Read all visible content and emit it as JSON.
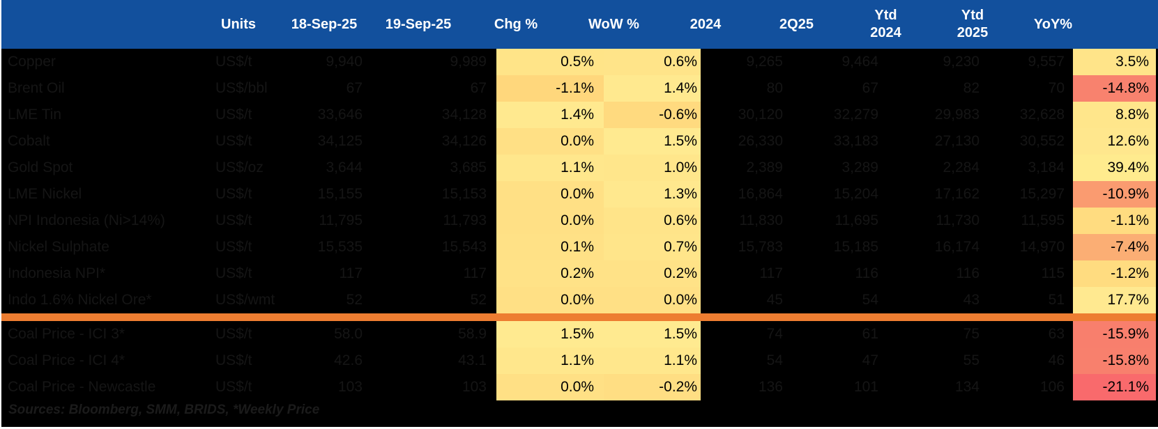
{
  "chart_data": {
    "type": "table",
    "divider_color": "#ED7D31",
    "header_bg": "#12509D",
    "columns": [
      {
        "label": ""
      },
      {
        "label": "Units"
      },
      {
        "label": "18-Sep-25"
      },
      {
        "label": "19-Sep-25"
      },
      {
        "label": "Chg %"
      },
      {
        "label": "WoW %"
      },
      {
        "label": "2024"
      },
      {
        "label": "2Q25"
      },
      {
        "line1": "Ytd",
        "line2": "2024"
      },
      {
        "line1": "Ytd",
        "line2": "2025"
      },
      {
        "label": "YoY%"
      }
    ],
    "rows": [
      {
        "label": "Copper",
        "units": "US$/t",
        "d18": "9,940",
        "d19": "9,989",
        "chg": "0.5%",
        "wow": "0.6%",
        "y2024": "9,265",
        "q2_25": "9,464",
        "ytd2024": "9,230",
        "ytd2025": "9,557",
        "yoy": "3.5%",
        "chg_bg": "#FFE488",
        "wow_bg": "#FFE489",
        "yoy_bg": "#FFE489"
      },
      {
        "label": "Brent Oil",
        "units": "US$/bbl",
        "d18": "67",
        "d19": "67",
        "chg": "-1.1%",
        "wow": "1.4%",
        "y2024": "80",
        "q2_25": "67",
        "ytd2024": "82",
        "ytd2025": "70",
        "yoy": "-14.8%",
        "chg_bg": "#FFD77C",
        "wow_bg": "#FFE98F",
        "yoy_bg": "#F8826E"
      },
      {
        "label": "LME Tin",
        "units": "US$/t",
        "d18": "33,646",
        "d19": "34,128",
        "chg": "1.4%",
        "wow": "-0.6%",
        "y2024": "30,120",
        "q2_25": "32,279",
        "ytd2024": "29,983",
        "ytd2025": "32,628",
        "yoy": "8.8%",
        "chg_bg": "#FFE98F",
        "wow_bg": "#FFDA7F",
        "yoy_bg": "#FFE68B"
      },
      {
        "label": "Cobalt",
        "units": "US$/t",
        "d18": "34,125",
        "d19": "34,126",
        "chg": "0.0%",
        "wow": "1.5%",
        "y2024": "26,330",
        "q2_25": "33,183",
        "ytd2024": "27,130",
        "ytd2025": "30,552",
        "yoy": "12.6%",
        "chg_bg": "#FFE085",
        "wow_bg": "#FFEA90",
        "yoy_bg": "#FFE78D"
      },
      {
        "label": "Gold Spot",
        "units": "US$/oz",
        "d18": "3,644",
        "d19": "3,685",
        "chg": "1.1%",
        "wow": "1.0%",
        "y2024": "2,389",
        "q2_25": "3,289",
        "ytd2024": "2,284",
        "ytd2025": "3,184",
        "yoy": "39.4%",
        "chg_bg": "#FFE78C",
        "wow_bg": "#FFE68B",
        "yoy_bg": "#FFEB8E"
      },
      {
        "label": "LME Nickel",
        "units": "US$/t",
        "d18": "15,155",
        "d19": "15,153",
        "chg": "0.0%",
        "wow": "1.3%",
        "y2024": "16,864",
        "q2_25": "15,204",
        "ytd2024": "17,162",
        "ytd2025": "15,297",
        "yoy": "-10.9%",
        "chg_bg": "#FFE085",
        "wow_bg": "#FFE88E",
        "yoy_bg": "#FA9B70"
      },
      {
        "label": "NPI Indonesia (Ni>14%)",
        "units": "US$/t",
        "d18": "11,795",
        "d19": "11,793",
        "chg": "0.0%",
        "wow": "0.6%",
        "y2024": "11,830",
        "q2_25": "11,695",
        "ytd2024": "11,730",
        "ytd2025": "11,595",
        "yoy": "-1.1%",
        "chg_bg": "#FFE085",
        "wow_bg": "#FFE489",
        "yoy_bg": "#FFDC80"
      },
      {
        "label": "Nickel Sulphate",
        "units": "US$/t",
        "d18": "15,535",
        "d19": "15,543",
        "chg": "0.1%",
        "wow": "0.7%",
        "y2024": "15,783",
        "q2_25": "15,185",
        "ytd2024": "16,174",
        "ytd2025": "14,970",
        "yoy": "-7.4%",
        "chg_bg": "#FFE186",
        "wow_bg": "#FFE58A",
        "yoy_bg": "#FBAE74"
      },
      {
        "label": "Indonesia NPI*",
        "units": "US$/t",
        "d18": "117",
        "d19": "117",
        "chg": "0.2%",
        "wow": "0.2%",
        "y2024": "117",
        "q2_25": "116",
        "ytd2024": "116",
        "ytd2025": "115",
        "yoy": "-1.2%",
        "chg_bg": "#FFE287",
        "wow_bg": "#FFE287",
        "yoy_bg": "#FFDC80"
      },
      {
        "label": "Indo 1.6% Nickel Ore*",
        "units": "US$/wmt",
        "d18": "52",
        "d19": "52",
        "chg": "0.0%",
        "wow": "0.0%",
        "y2024": "45",
        "q2_25": "54",
        "ytd2024": "43",
        "ytd2025": "51",
        "yoy": "17.7%",
        "chg_bg": "#FFE085",
        "wow_bg": "#FFE085",
        "yoy_bg": "#FFE990"
      },
      {
        "label": "Coal Price - ICI 3*",
        "units": "US$/t",
        "d18": "58.0",
        "d19": "58.9",
        "chg": "1.5%",
        "wow": "1.5%",
        "y2024": "74",
        "q2_25": "61",
        "ytd2024": "75",
        "ytd2025": "63",
        "yoy": "-15.9%",
        "chg_bg": "#FFEA90",
        "wow_bg": "#FFEA90",
        "yoy_bg": "#F87F6D"
      },
      {
        "label": "Coal Price - ICI 4*",
        "units": "US$/t",
        "d18": "42.6",
        "d19": "43.1",
        "chg": "1.1%",
        "wow": "1.1%",
        "y2024": "54",
        "q2_25": "47",
        "ytd2024": "55",
        "ytd2025": "46",
        "yoy": "-15.8%",
        "chg_bg": "#FFE78C",
        "wow_bg": "#FFE78C",
        "yoy_bg": "#F8806D"
      },
      {
        "label": "Coal Price - Newcastle",
        "units": "US$/t",
        "d18": "103",
        "d19": "103",
        "chg": "0.0%",
        "wow": "-0.2%",
        "y2024": "136",
        "q2_25": "101",
        "ytd2024": "134",
        "ytd2025": "106",
        "yoy": "-21.1%",
        "chg_bg": "#FFE085",
        "wow_bg": "#FFDE83",
        "yoy_bg": "#F96A6C"
      }
    ],
    "source": "Sources: Bloomberg, SMM, BRIDS, *Weekly Price"
  }
}
